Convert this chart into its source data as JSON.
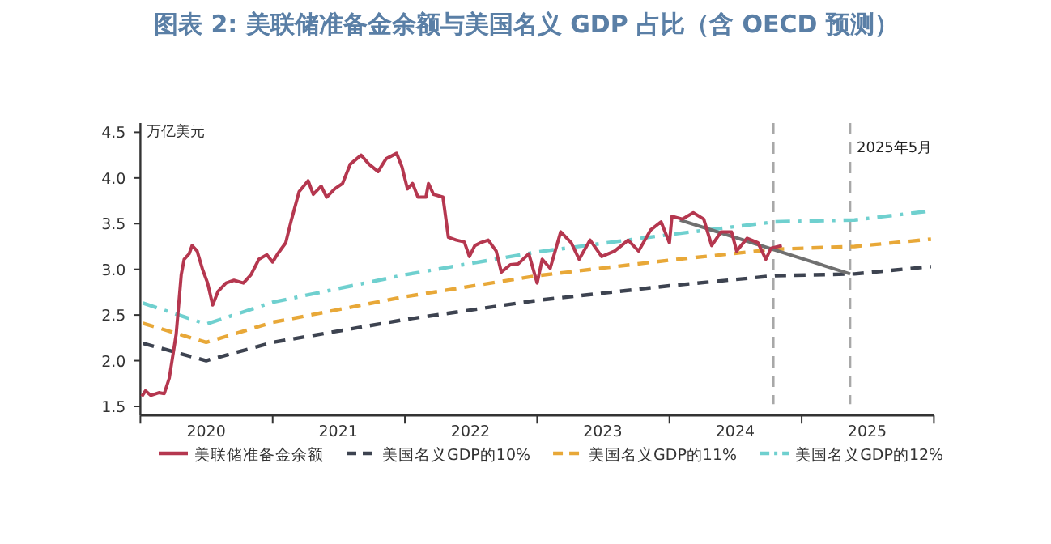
{
  "chart_data": {
    "type": "line",
    "title": "图表 2: 美联储准备金余额与美国名义 GDP 占比（含 OECD 预测）",
    "ylabel": "万亿美元",
    "xlim": [
      "2020-01-01",
      "2026-01-01"
    ],
    "xticks": [
      {
        "value": "2020-01-01",
        "label": null
      },
      {
        "value": "2020-07-01",
        "label": "2020"
      },
      {
        "value": "2021-01-01",
        "label": null
      },
      {
        "value": "2021-07-01",
        "label": "2021"
      },
      {
        "value": "2022-01-01",
        "label": null
      },
      {
        "value": "2022-07-01",
        "label": "2022"
      },
      {
        "value": "2023-01-01",
        "label": null
      },
      {
        "value": "2023-07-01",
        "label": "2023"
      },
      {
        "value": "2024-01-01",
        "label": null
      },
      {
        "value": "2024-07-01",
        "label": "2024"
      },
      {
        "value": "2025-01-01",
        "label": null
      },
      {
        "value": "2025-07-01",
        "label": "2025"
      },
      {
        "value": "2026-01-01",
        "label": null
      }
    ],
    "ylim": [
      1.4,
      4.6
    ],
    "yticks": [
      1.5,
      {
        "value": 2,
        "label": "2.0"
      },
      2.5,
      {
        "value": 3,
        "label": "3.0"
      },
      3.5,
      {
        "value": 4,
        "label": "4.0"
      },
      4.5
    ],
    "grid": false,
    "legend": "bottom",
    "series": [
      {
        "name": "美联储准备金余额",
        "color": "#b5374f",
        "line_style": "solid",
        "x": [
          "2020-01-05",
          "2020-01-15",
          "2020-01-30",
          "2020-02-21",
          "2020-03-07",
          "2020-03-21",
          "2020-04-09",
          "2020-04-23",
          "2020-05-01",
          "2020-05-15",
          "2020-05-23",
          "2020-06-06",
          "2020-06-21",
          "2020-07-05",
          "2020-07-19",
          "2020-08-03",
          "2020-08-25",
          "2020-09-16",
          "2020-10-12",
          "2020-11-02",
          "2020-11-24",
          "2020-12-16",
          "2021-01-01",
          "2021-01-15",
          "2021-02-06",
          "2021-02-21",
          "2021-03-15",
          "2021-04-09",
          "2021-04-23",
          "2021-05-15",
          "2021-05-30",
          "2021-06-21",
          "2021-07-13",
          "2021-08-03",
          "2021-09-02",
          "2021-09-24",
          "2021-10-19",
          "2021-11-10",
          "2021-12-09",
          "2021-12-24",
          "2022-01-08",
          "2022-01-22",
          "2022-02-06",
          "2022-02-28",
          "2022-03-07",
          "2022-03-21",
          "2022-04-16",
          "2022-05-01",
          "2022-05-23",
          "2022-06-14",
          "2022-06-28",
          "2022-07-13",
          "2022-07-28",
          "2022-08-19",
          "2022-09-10",
          "2022-09-24",
          "2022-10-19",
          "2022-11-10",
          "2022-12-09",
          "2023-01-01",
          "2023-01-15",
          "2023-02-06",
          "2023-03-07",
          "2023-04-05",
          "2023-04-27",
          "2023-05-27",
          "2023-06-28",
          "2023-08-03",
          "2023-09-09",
          "2023-10-08",
          "2023-11-10",
          "2023-12-09",
          "2024-01-01",
          "2024-01-08",
          "2024-02-06",
          "2024-03-07",
          "2024-04-05",
          "2024-04-27",
          "2024-05-23",
          "2024-06-21",
          "2024-07-05",
          "2024-08-03",
          "2024-09-02",
          "2024-09-24",
          "2024-10-08",
          "2024-11-07"
        ],
        "values": [
          1.61,
          1.67,
          1.62,
          1.65,
          1.64,
          1.81,
          2.29,
          2.94,
          3.11,
          3.17,
          3.26,
          3.2,
          3.0,
          2.85,
          2.61,
          2.76,
          2.85,
          2.88,
          2.85,
          2.94,
          3.11,
          3.16,
          3.08,
          3.17,
          3.29,
          3.53,
          3.85,
          3.97,
          3.82,
          3.91,
          3.79,
          3.88,
          3.94,
          4.15,
          4.25,
          4.15,
          4.07,
          4.21,
          4.27,
          4.12,
          3.88,
          3.94,
          3.79,
          3.79,
          3.94,
          3.82,
          3.79,
          3.35,
          3.32,
          3.3,
          3.14,
          3.26,
          3.29,
          3.32,
          3.2,
          2.97,
          3.05,
          3.06,
          3.17,
          2.85,
          3.11,
          3.01,
          3.41,
          3.29,
          3.11,
          3.32,
          3.14,
          3.2,
          3.32,
          3.2,
          3.43,
          3.52,
          3.29,
          3.58,
          3.55,
          3.62,
          3.55,
          3.26,
          3.41,
          3.41,
          3.2,
          3.34,
          3.29,
          3.11,
          3.23,
          3.26
        ]
      },
      {
        "name": "美国名义GDP的10%",
        "color": "#3d4350",
        "line_style": "dashed",
        "x": [
          "2020-01-08",
          "2020-07-01",
          "2021-01-01",
          "2022-01-01",
          "2023-01-01",
          "2024-01-01",
          "2024-10-19",
          "2025-05-27",
          "2025-12-24"
        ],
        "values": [
          2.19,
          2.0,
          2.2,
          2.45,
          2.66,
          2.82,
          2.93,
          2.95,
          3.03
        ]
      },
      {
        "name": "美国名义GDP的11%",
        "color": "#e8a838",
        "line_style": "dashed",
        "x": [
          "2020-01-08",
          "2020-07-01",
          "2021-01-01",
          "2022-01-01",
          "2023-01-01",
          "2024-01-01",
          "2024-10-19",
          "2025-05-27",
          "2025-12-24"
        ],
        "values": [
          2.41,
          2.2,
          2.42,
          2.7,
          2.93,
          3.1,
          3.22,
          3.25,
          3.33
        ]
      },
      {
        "name": "美国名义GDP的12%",
        "color": "#6fd0cf",
        "line_style": "dashdot",
        "x": [
          "2020-01-08",
          "2020-07-01",
          "2021-01-01",
          "2022-01-01",
          "2023-01-01",
          "2024-01-01",
          "2024-10-19",
          "2025-05-27",
          "2025-12-24"
        ],
        "values": [
          2.63,
          2.4,
          2.64,
          2.94,
          3.19,
          3.38,
          3.52,
          3.54,
          3.64
        ]
      },
      {
        "color": "#707070",
        "line_style": "solid",
        "x": [
          "2024-01-30",
          "2025-05-15"
        ],
        "values": [
          3.54,
          2.95
        ]
      }
    ],
    "ref_lines": [
      {
        "axis": "x",
        "value": "2024-10-15",
        "label": null,
        "color": "#a8a8a8",
        "line_style": "dashed"
      },
      {
        "axis": "x",
        "value": "2025-05-15",
        "label": "2025年5月",
        "color": "#a8a8a8",
        "line_style": "dashed"
      }
    ]
  }
}
